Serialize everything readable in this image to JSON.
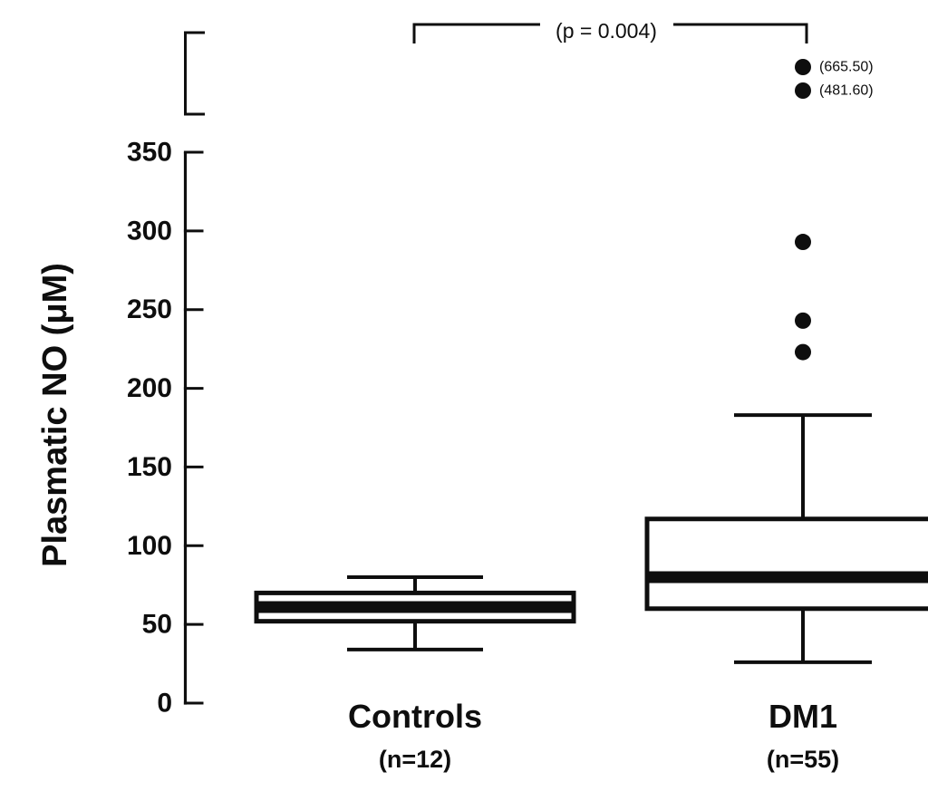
{
  "figure": {
    "background": "#ffffff",
    "ink_color": "#0e0e0e"
  },
  "chart_data": {
    "type": "box",
    "title": "",
    "xlabel": "",
    "ylabel": "Plasmatic NO (μM)",
    "ylim": [
      0,
      350
    ],
    "yticks": [
      0,
      50,
      100,
      150,
      200,
      250,
      300,
      350
    ],
    "grid": false,
    "axis_break_above_max": true,
    "legend": "none",
    "significance_annotation": {
      "label": "(p = 0.004)",
      "between": [
        "Controls",
        "DM1"
      ]
    },
    "groups": [
      {
        "label": "Controls",
        "n_label": "(n=12)",
        "n": 12,
        "whisker_low": 34,
        "q1": 52,
        "median": 61,
        "q3": 70,
        "whisker_high": 80,
        "outliers": [],
        "offscale_outliers": []
      },
      {
        "label": "DM1",
        "n_label": "(n=55)",
        "n": 55,
        "whisker_low": 26,
        "q1": 60,
        "median": 80,
        "q3": 117,
        "whisker_high": 183,
        "outliers": [
          293,
          243,
          223
        ],
        "offscale_outliers": [
          {
            "value": 665.5,
            "label": "(665.50)"
          },
          {
            "value": 481.6,
            "label": "(481.60)"
          }
        ]
      }
    ]
  }
}
